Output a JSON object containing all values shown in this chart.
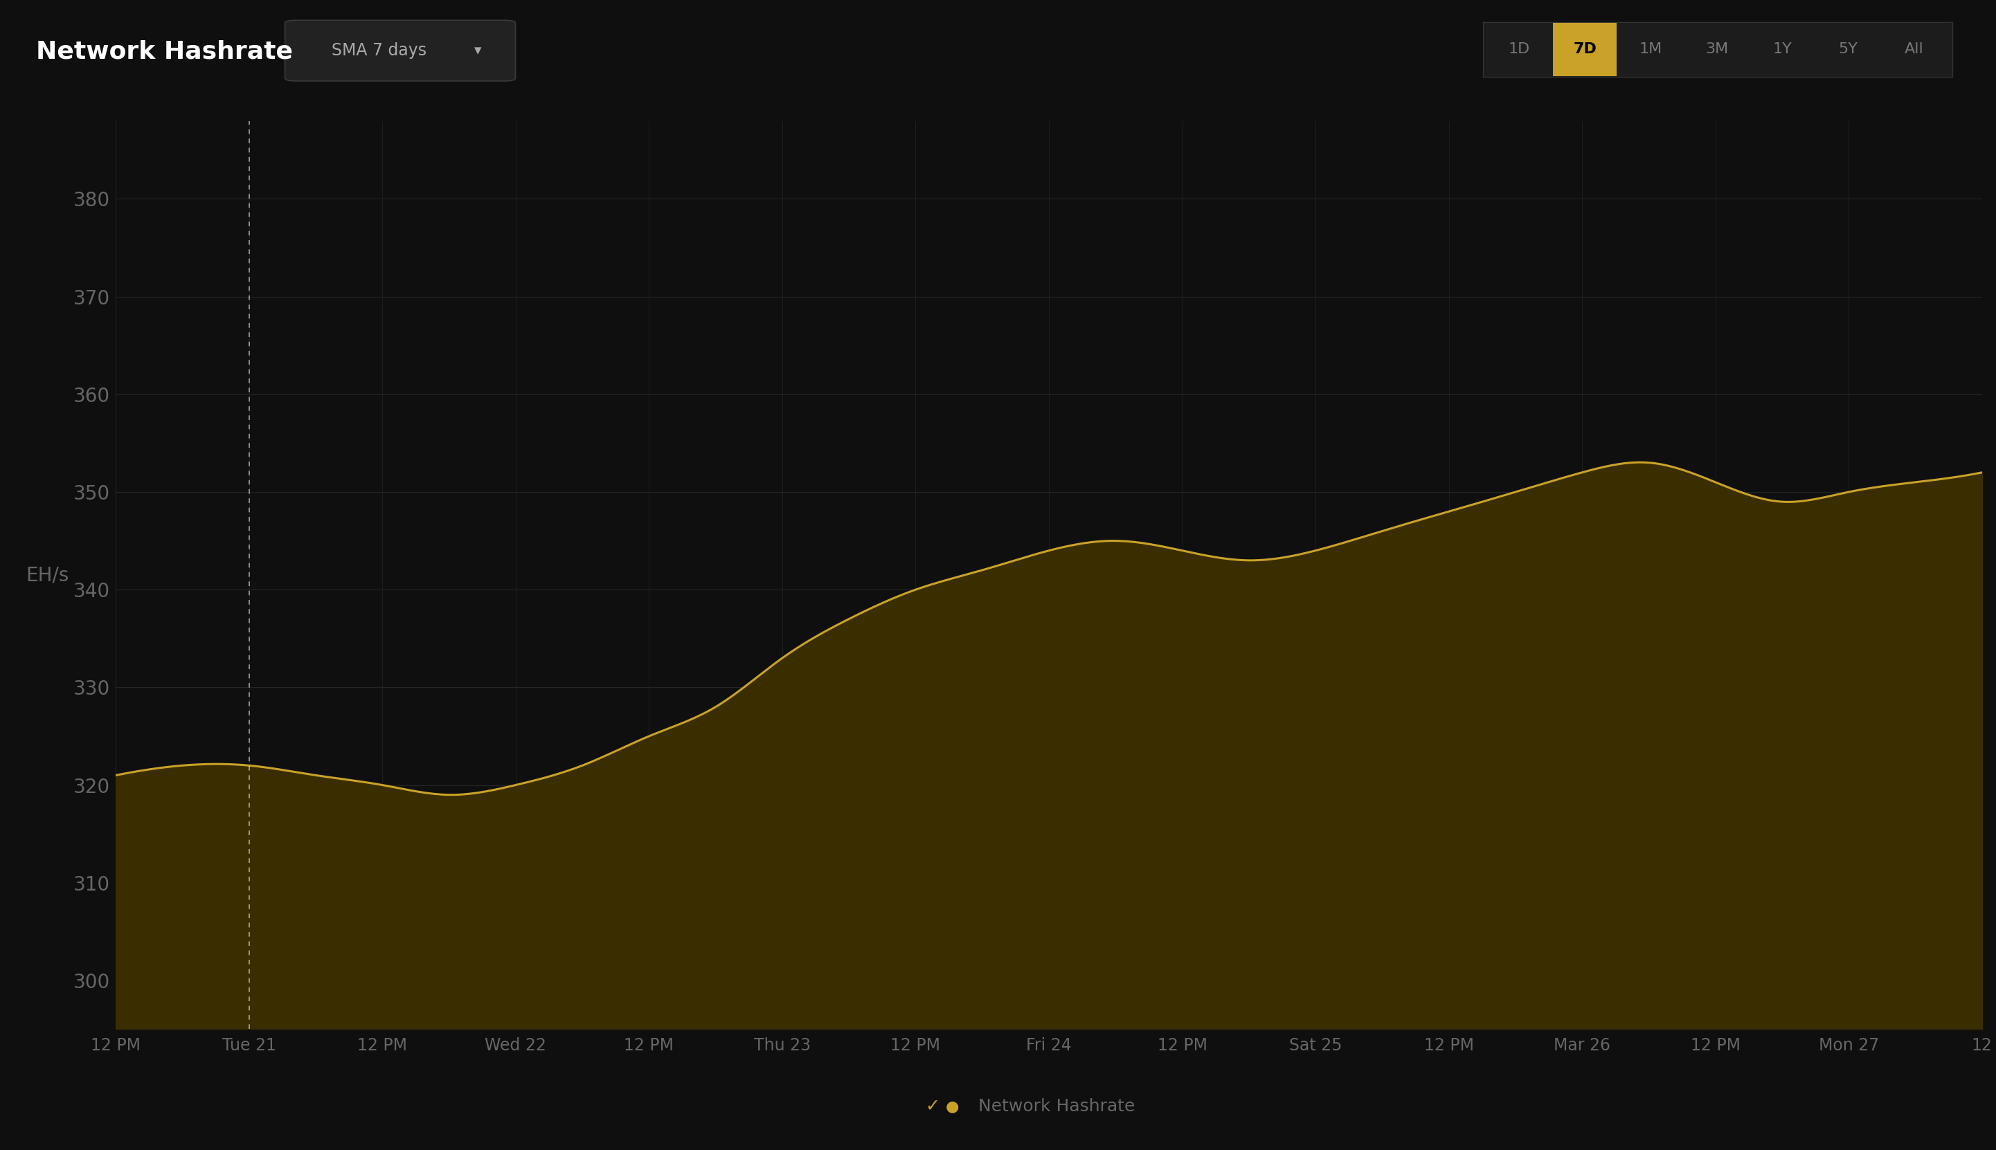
{
  "title": "Network Hashrate",
  "dropdown_label": "SMA 7 days",
  "ylabel": "EH/s",
  "background_color": "#0f0f0f",
  "plot_bg_color": "#0f0f0f",
  "grid_color": "#252525",
  "line_color": "#c9a227",
  "fill_color": "#3a2e00",
  "legend_label": "Network Hashrate",
  "legend_dot_color": "#c9a227",
  "yticks": [
    300,
    310,
    320,
    330,
    340,
    350,
    360,
    370,
    380
  ],
  "ylim": [
    295,
    388
  ],
  "xtick_labels": [
    "12 PM",
    "Tue 21",
    "12 PM",
    "Wed 22",
    "12 PM",
    "Thu 23",
    "12 PM",
    "Fri 24",
    "12 PM",
    "Sat 25",
    "12 PM",
    "Mar 26",
    "12 PM",
    "Mon 27",
    "12"
  ],
  "tab_buttons": [
    "1D",
    "7D",
    "1M",
    "3M",
    "1Y",
    "5Y",
    "All"
  ],
  "active_tab": "7D",
  "active_tab_bg": "#c9a227",
  "active_tab_text": "#000000",
  "inactive_tab_bg": "#1c1c1c",
  "inactive_tab_text": "#777777",
  "title_color": "#ffffff",
  "tick_color": "#666666",
  "dropdown_bg": "#222222",
  "dropdown_text": "#aaaaaa",
  "dashed_vline_color": "#ffffff",
  "dashed_vline_x": 1
}
